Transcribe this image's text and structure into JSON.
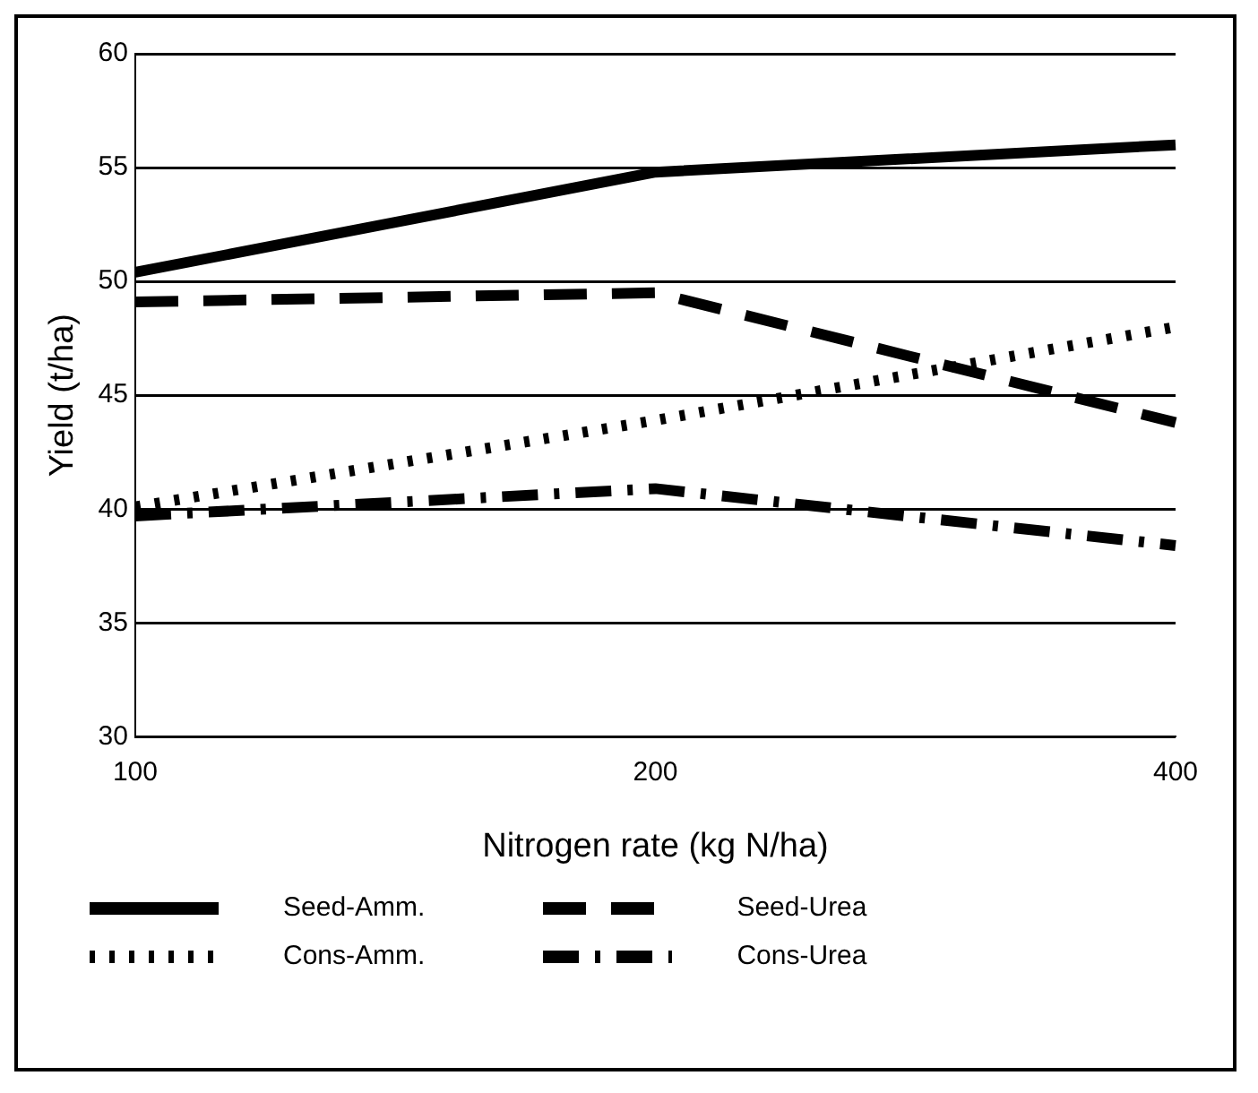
{
  "chart_data": {
    "type": "line",
    "xlabel": "Nitrogen rate (kg N/ha)",
    "ylabel": "Yield (t/ha)",
    "categories": [
      "100",
      "200",
      "400"
    ],
    "series": [
      {
        "name": "Seed-Amm.",
        "color": "#000000",
        "line_style": "solid",
        "values": [
          50.4,
          54.8,
          56.0
        ]
      },
      {
        "name": "Seed-Urea",
        "color": "#000000",
        "line_style": "dashed",
        "values": [
          49.1,
          49.5,
          43.8
        ]
      },
      {
        "name": "Cons-Amm.",
        "color": "#000000",
        "line_style": "dotted",
        "values": [
          40.1,
          43.9,
          48.0
        ]
      },
      {
        "name": "Cons-Urea",
        "color": "#000000",
        "line_style": "dashdot",
        "values": [
          39.7,
          40.9,
          38.4
        ]
      }
    ],
    "ylim": [
      30,
      60
    ],
    "yticks": [
      30,
      35,
      40,
      45,
      50,
      55,
      60
    ],
    "grid": "y",
    "legend": "bottom",
    "marker": "none"
  }
}
